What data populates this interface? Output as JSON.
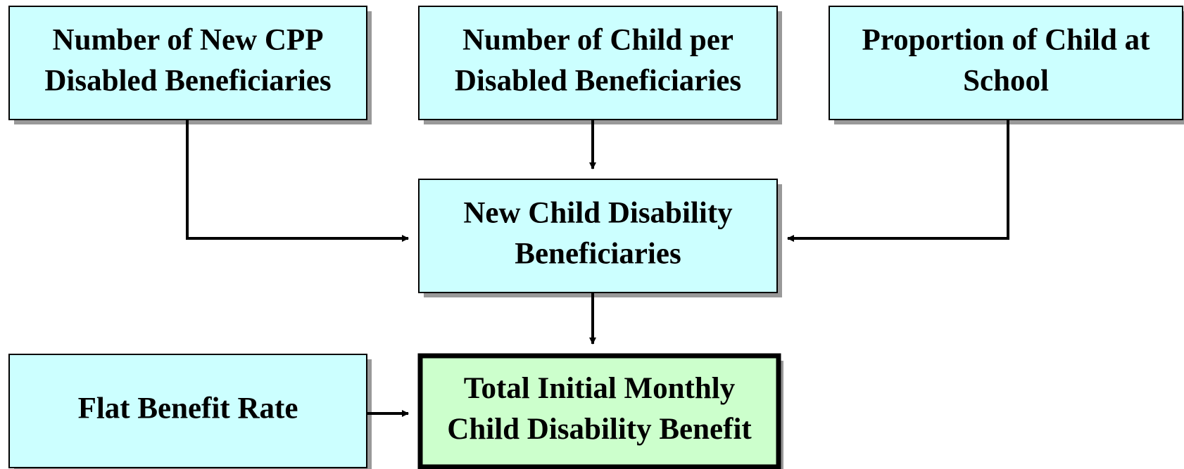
{
  "nodes": [
    {
      "lines": [
        "Number of New CPP",
        "Disabled Beneficiaries"
      ]
    },
    {
      "lines": [
        "Number of Child per",
        "Disabled Beneficiaries"
      ]
    },
    {
      "lines": [
        "Proportion of Child at",
        "School"
      ]
    },
    {
      "lines": [
        "New Child Disability",
        "Beneficiaries"
      ]
    },
    {
      "lines": [
        "Flat Benefit Rate"
      ]
    },
    {
      "lines": [
        "Total Initial Monthly",
        "Child Disability Benefit"
      ]
    }
  ]
}
